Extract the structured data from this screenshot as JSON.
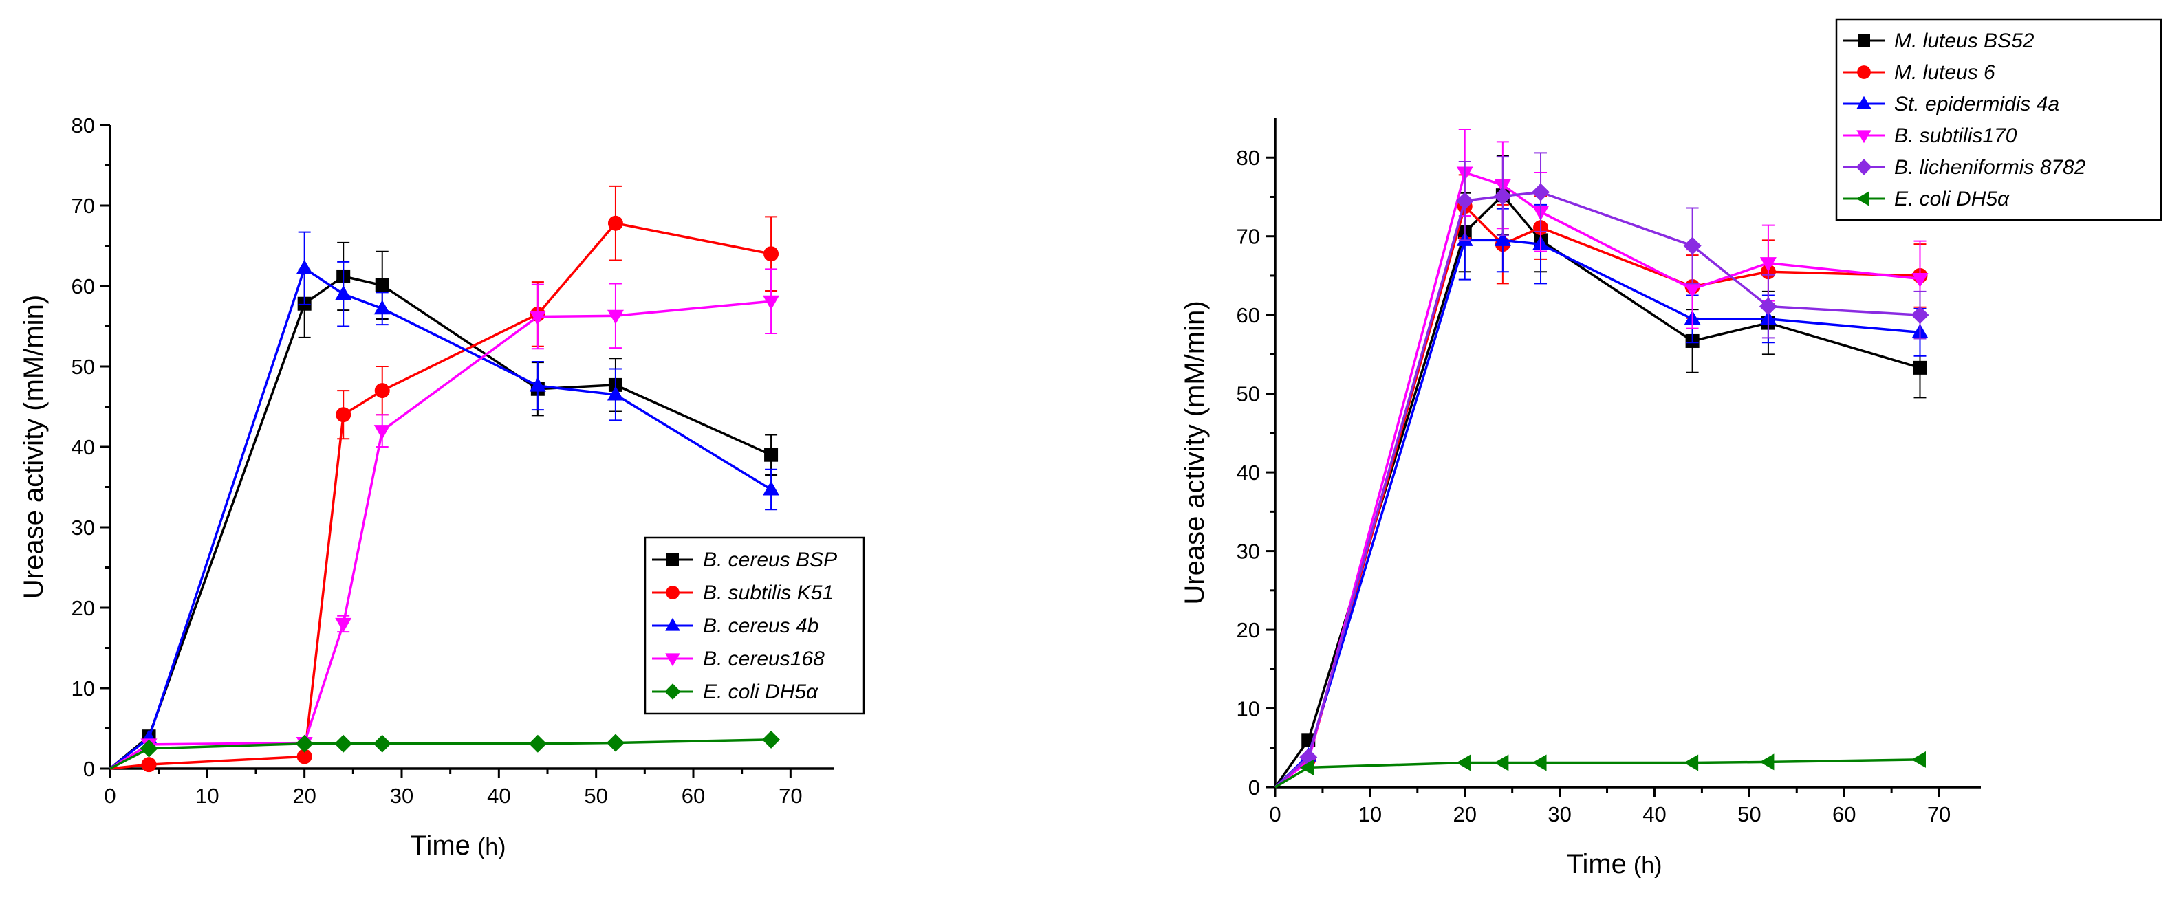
{
  "chart_data": [
    {
      "type": "line",
      "title": "",
      "xlabel": "Time",
      "xlabel_unit": "(h)",
      "ylabel": "Urease activity (mM/min)",
      "xlim": [
        0,
        75
      ],
      "ylim": [
        0,
        80
      ],
      "xticks": [
        "0",
        "10",
        "20",
        "30",
        "40",
        "50",
        "60",
        "70"
      ],
      "yticks": [
        "0",
        "10",
        "20",
        "30",
        "40",
        "50",
        "60",
        "70",
        "80"
      ],
      "grid": false,
      "legend_position": "center-right",
      "series": [
        {
          "name": "B. cereus BSP",
          "color": "#000000",
          "marker": "square",
          "x": [
            0,
            4,
            20,
            24,
            28,
            44,
            52,
            68
          ],
          "y": [
            0,
            4,
            57.8,
            61.2,
            60.1,
            47.2,
            47.7,
            39
          ],
          "err": [
            0,
            0,
            4.2,
            4.2,
            4.2,
            3.3,
            3.3,
            2.5
          ]
        },
        {
          "name": "B. subtilis K51",
          "color": "#ff0000",
          "marker": "circle",
          "x": [
            0,
            4,
            20,
            24,
            28,
            44,
            52,
            68
          ],
          "y": [
            0,
            0.5,
            1.5,
            44,
            47,
            56.5,
            67.8,
            64
          ],
          "err": [
            0,
            0,
            0,
            3,
            3,
            4,
            4.6,
            4.6
          ]
        },
        {
          "name": "B. cereus 4b",
          "color": "#0000ff",
          "marker": "triangle-up",
          "x": [
            0,
            4,
            20,
            24,
            28,
            44,
            52,
            68
          ],
          "y": [
            0,
            3.8,
            62.2,
            59,
            57.2,
            47.6,
            46.5,
            34.7
          ],
          "err": [
            0,
            0,
            4.5,
            4,
            2,
            3,
            3.2,
            2.5
          ]
        },
        {
          "name": "B. cereus168",
          "color": "#ff00ff",
          "marker": "triangle-down",
          "x": [
            0,
            4,
            20,
            24,
            28,
            44,
            52,
            68
          ],
          "y": [
            0,
            3,
            3.2,
            18,
            42,
            56.2,
            56.3,
            58.1
          ],
          "err": [
            0,
            0,
            0,
            1,
            2,
            4,
            4,
            4
          ]
        },
        {
          "name": "E. coli DH5α",
          "color": "#008000",
          "marker": "diamond",
          "x": [
            0,
            4,
            20,
            24,
            28,
            44,
            52,
            68
          ],
          "y": [
            0,
            2.5,
            3.1,
            3.1,
            3.1,
            3.1,
            3.2,
            3.6
          ],
          "err": [
            0,
            0,
            0,
            0,
            0,
            0,
            0,
            0
          ]
        }
      ]
    },
    {
      "type": "line",
      "title": "",
      "xlabel": "Time",
      "xlabel_unit": "(h)",
      "ylabel": "Urease activity (mM/min)",
      "xlim": [
        0,
        75
      ],
      "ylim": [
        0,
        85
      ],
      "xticks": [
        "0",
        "10",
        "20",
        "30",
        "40",
        "50",
        "60",
        "70"
      ],
      "yticks": [
        "0",
        "10",
        "20",
        "30",
        "40",
        "50",
        "60",
        "70",
        "80"
      ],
      "grid": false,
      "legend_position": "top-right",
      "series": [
        {
          "name": "M. luteus BS52",
          "color": "#000000",
          "marker": "square",
          "x": [
            0,
            3.5,
            20,
            24,
            28,
            44,
            52,
            68
          ],
          "y": [
            0,
            6,
            70.5,
            75.2,
            69.5,
            56.7,
            59,
            53.3
          ],
          "err": [
            0,
            0,
            5,
            5,
            4,
            4,
            4,
            3.8
          ]
        },
        {
          "name": "M. luteus 6",
          "color": "#ff0000",
          "marker": "circle",
          "x": [
            0,
            3.5,
            20,
            24,
            28,
            44,
            52,
            68
          ],
          "y": [
            0,
            3.5,
            73.8,
            69,
            71.1,
            63.6,
            65.5,
            65
          ],
          "err": [
            0,
            0,
            4,
            5,
            4,
            4,
            4,
            4
          ]
        },
        {
          "name": "St. epidermidis 4a",
          "color": "#0000ff",
          "marker": "triangle-up",
          "x": [
            0,
            3.5,
            20,
            24,
            28,
            44,
            52,
            68
          ],
          "y": [
            0,
            4,
            69.5,
            69.5,
            69,
            59.5,
            59.5,
            57.8
          ],
          "err": [
            0,
            0,
            5,
            4,
            5,
            3,
            3,
            3
          ]
        },
        {
          "name": "B. subtilis170",
          "color": "#ff00ff",
          "marker": "triangle-down",
          "x": [
            0,
            3.5,
            20,
            24,
            28,
            44,
            52,
            68
          ],
          "y": [
            0,
            3.3,
            78.1,
            76.5,
            73.1,
            63.3,
            66.6,
            64.6
          ],
          "err": [
            0,
            0,
            5.5,
            5.5,
            5,
            5,
            4.8,
            4.8
          ]
        },
        {
          "name": "B. licheniformis 8782",
          "color": "#8a2be2",
          "marker": "diamond",
          "x": [
            0,
            3.5,
            20,
            24,
            28,
            44,
            52,
            68
          ],
          "y": [
            0,
            3.8,
            74.5,
            75.1,
            75.6,
            68.8,
            61.1,
            60
          ],
          "err": [
            0,
            0,
            5,
            5,
            5,
            4.8,
            4,
            3
          ]
        },
        {
          "name": "E. coli DH5α",
          "color": "#008000",
          "marker": "triangle-left",
          "x": [
            0,
            3.5,
            20,
            24,
            28,
            44,
            52,
            68
          ],
          "y": [
            0,
            2.5,
            3.1,
            3.1,
            3.1,
            3.1,
            3.2,
            3.5
          ],
          "err": [
            0,
            0,
            0,
            0,
            0,
            0,
            0,
            0
          ]
        }
      ]
    }
  ]
}
